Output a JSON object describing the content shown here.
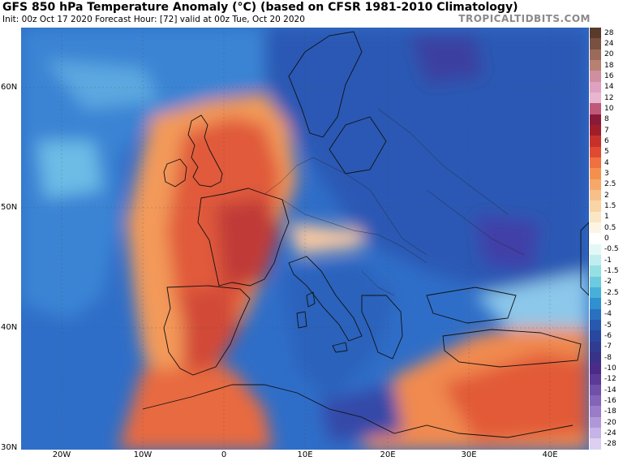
{
  "title": "GFS 850 hPa Temperature Anomaly (°C) (based on CFSR 1981-2010 Climatology)",
  "subtitle": "Init: 00z Oct 17 2020   Forecast Hour: [72]   valid at 00z Tue, Oct 20 2020",
  "brand": "TROPICALTIDBITS.COM",
  "lat_labels": [
    "60N",
    "50N",
    "40N",
    "30N"
  ],
  "lon_labels": [
    "20W",
    "10W",
    "0",
    "10E",
    "20E",
    "30E",
    "40E"
  ],
  "colorbar": {
    "labels": [
      "28",
      "24",
      "20",
      "18",
      "16",
      "14",
      "12",
      "10",
      "8",
      "7",
      "6",
      "5",
      "4",
      "3",
      "2.5",
      "2",
      "1.5",
      "1",
      "0.5",
      "0",
      "-0.5",
      "-1",
      "-1.5",
      "-2",
      "-2.5",
      "-3",
      "-4",
      "-5",
      "-6",
      "-7",
      "-8",
      "-10",
      "-12",
      "-14",
      "-16",
      "-18",
      "-20",
      "-24",
      "-28"
    ],
    "colors": [
      "#5a3a2a",
      "#7a5040",
      "#9a6a5a",
      "#b88070",
      "#cf8fa0",
      "#e0a0c0",
      "#e8b6d0",
      "#c0587a",
      "#8a1a3a",
      "#a01e2a",
      "#c8312a",
      "#e04a30",
      "#f07040",
      "#f4904e",
      "#f6a86a",
      "#f8c088",
      "#f9d4a4",
      "#fae6c4",
      "#fdf4e4",
      "#ffffff",
      "#e4f7f7",
      "#c0eeee",
      "#96e0e4",
      "#6ccbe0",
      "#48b0d8",
      "#3090d0",
      "#2a70c0",
      "#2858b0",
      "#2848a0",
      "#303c90",
      "#3a3288",
      "#4a2c88",
      "#5c3a98",
      "#7050a8",
      "#8464b8",
      "#9a7cc8",
      "#b098d8",
      "#c6b4e6",
      "#dccff0"
    ]
  }
}
